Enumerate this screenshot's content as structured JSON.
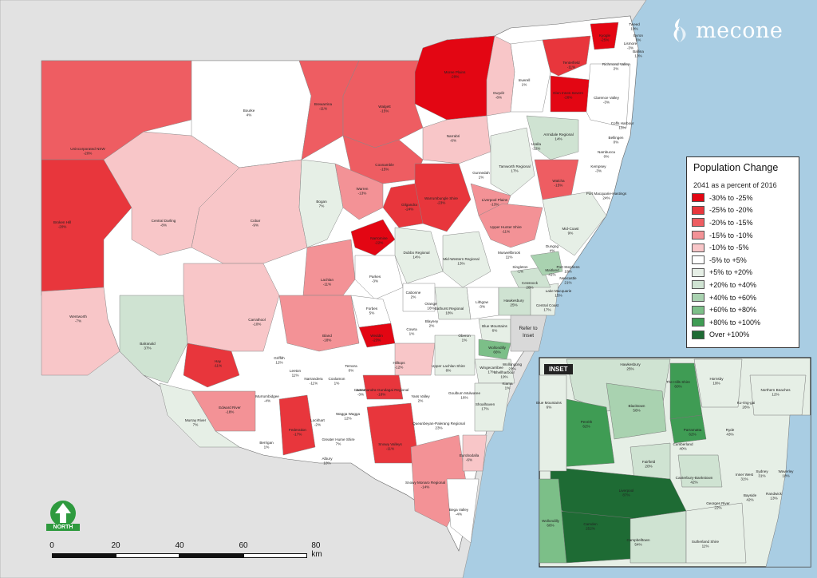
{
  "brand": {
    "name": "mecone"
  },
  "legend": {
    "title": "Population Change",
    "subtitle": "2041 as a percent of 2016",
    "items": [
      {
        "label": "-30% to -25%",
        "color": "#e30613"
      },
      {
        "label": "-25% to -20%",
        "color": "#e8363c"
      },
      {
        "label": "-20% to -15%",
        "color": "#ee5d62"
      },
      {
        "label": "-15% to -10%",
        "color": "#f39296"
      },
      {
        "label": "-10% to -5%",
        "color": "#f8c6c8"
      },
      {
        "label": "-5% to +5%",
        "color": "#ffffff"
      },
      {
        "label": "+5% to +20%",
        "color": "#e6efe6"
      },
      {
        "label": "+20% to +40%",
        "color": "#cfe3d2"
      },
      {
        "label": "+40% to +60%",
        "color": "#a9d2b0"
      },
      {
        "label": "+60% to +80%",
        "color": "#7cbf88"
      },
      {
        "label": "+80% to +100%",
        "color": "#3f9c54"
      },
      {
        "label": "Over +100%",
        "color": "#1e6b34"
      }
    ]
  },
  "inset": {
    "tag": "INSET"
  },
  "refer": {
    "line1": "Refer to",
    "line2": "Inset"
  },
  "north": {
    "label": "NORTH"
  },
  "scale": {
    "ticks": [
      "0",
      "20",
      "40",
      "60",
      "80 km"
    ]
  },
  "regions": [
    {
      "name": "Unincorporated NSW",
      "value": "-20%"
    },
    {
      "name": "Broken Hill",
      "value": "-20%"
    },
    {
      "name": "Bourke",
      "value": "4%"
    },
    {
      "name": "Brewarrina",
      "value": "-11%"
    },
    {
      "name": "Walgett",
      "value": "-15%"
    },
    {
      "name": "Moree Plains",
      "value": "-29%"
    },
    {
      "name": "Gwydir",
      "value": "-8%"
    },
    {
      "name": "Inverell",
      "value": "1%"
    },
    {
      "name": "Tenterfield",
      "value": "-11%"
    },
    {
      "name": "Kyogle",
      "value": "-25%"
    },
    {
      "name": "Glen Innes Severn",
      "value": "-26%"
    },
    {
      "name": "Tweed",
      "value": "19%"
    },
    {
      "name": "Byron",
      "value": "5%"
    },
    {
      "name": "Lismore",
      "value": "-3%"
    },
    {
      "name": "Ballina",
      "value": "13%"
    },
    {
      "name": "Richmond Valley",
      "value": "2%"
    },
    {
      "name": "Clarence Valley",
      "value": "-3%"
    },
    {
      "name": "Coffs Harbour",
      "value": "15%"
    },
    {
      "name": "Bellingen",
      "value": "0%"
    },
    {
      "name": "Nambucca",
      "value": "0%"
    },
    {
      "name": "Kempsey",
      "value": "-3%"
    },
    {
      "name": "Armidale Regional",
      "value": "14%"
    },
    {
      "name": "Uralla",
      "value": "-12%"
    },
    {
      "name": "Walcha",
      "value": "-15%"
    },
    {
      "name": "Port Macquarie-Hastings",
      "value": "24%"
    },
    {
      "name": "Narrabri",
      "value": "-6%"
    },
    {
      "name": "Coonamble",
      "value": "-15%"
    },
    {
      "name": "Gunnedah",
      "value": "1%"
    },
    {
      "name": "Tamworth Regional",
      "value": "17%"
    },
    {
      "name": "Warrumbungle Shire",
      "value": "-23%"
    },
    {
      "name": "Liverpool Plains",
      "value": "-13%"
    },
    {
      "name": "Central Darling",
      "value": "-8%"
    },
    {
      "name": "Cobar",
      "value": "-9%"
    },
    {
      "name": "Bogan",
      "value": "7%"
    },
    {
      "name": "Warren",
      "value": "-13%"
    },
    {
      "name": "Gilgandra",
      "value": "-24%"
    },
    {
      "name": "Upper Hunter Shire",
      "value": "-11%"
    },
    {
      "name": "Mid-Coast",
      "value": "9%"
    },
    {
      "name": "Narromine",
      "value": "-22%"
    },
    {
      "name": "Dubbo Regional",
      "value": "14%"
    },
    {
      "name": "Mid-Western Regional",
      "value": "13%"
    },
    {
      "name": "Muswellbrook",
      "value": "11%"
    },
    {
      "name": "Dungog",
      "value": "4%"
    },
    {
      "name": "Singleton",
      "value": "-1%"
    },
    {
      "name": "Maitland",
      "value": "41%"
    },
    {
      "name": "Port Stephens",
      "value": "19%"
    },
    {
      "name": "Cessnock",
      "value": "28%"
    },
    {
      "name": "Newcastle",
      "value": "21%"
    },
    {
      "name": "Lake Macquarie",
      "value": "15%"
    },
    {
      "name": "Central Coast",
      "value": "17%"
    },
    {
      "name": "Hawkesbury",
      "value": "25%"
    },
    {
      "name": "Lachlan",
      "value": "-11%"
    },
    {
      "name": "Parkes",
      "value": "-3%"
    },
    {
      "name": "Forbes",
      "value": "5%"
    },
    {
      "name": "Cabonne",
      "value": "2%"
    },
    {
      "name": "Orange",
      "value": "16%"
    },
    {
      "name": "Bathurst Regional",
      "value": "18%"
    },
    {
      "name": "Lithgow",
      "value": "-3%"
    },
    {
      "name": "Blayney",
      "value": "2%"
    },
    {
      "name": "Blue Mountains",
      "value": "6%"
    },
    {
      "name": "Oberon",
      "value": "1%"
    },
    {
      "name": "Cowra",
      "value": "1%"
    },
    {
      "name": "Weddin",
      "value": "-23%"
    },
    {
      "name": "Bland",
      "value": "-18%"
    },
    {
      "name": "Hilltops",
      "value": "-12%"
    },
    {
      "name": "Upper Lachlan Shire",
      "value": "8%"
    },
    {
      "name": "Wingecarribee",
      "value": "17%"
    },
    {
      "name": "Wollondilly",
      "value": "66%"
    },
    {
      "name": "Wollongong",
      "value": "21%"
    },
    {
      "name": "Shellharbour",
      "value": "19%"
    },
    {
      "name": "Kiama",
      "value": "1%"
    },
    {
      "name": "Wentworth",
      "value": "-7%"
    },
    {
      "name": "Balranald",
      "value": "37%"
    },
    {
      "name": "Carrathool",
      "value": "-10%"
    },
    {
      "name": "Hay",
      "value": "-11%"
    },
    {
      "name": "Griffith",
      "value": "12%"
    },
    {
      "name": "Leeton",
      "value": "11%"
    },
    {
      "name": "Narrandera",
      "value": "-11%"
    },
    {
      "name": "Coolamon",
      "value": "1%"
    },
    {
      "name": "Temora",
      "value": "0%"
    },
    {
      "name": "Junee",
      "value": "-3%"
    },
    {
      "name": "Cootamundra-Gundagai Regional",
      "value": "-18%"
    },
    {
      "name": "Yass Valley",
      "value": "2%"
    },
    {
      "name": "Goulburn Mulwaree",
      "value": "16%"
    },
    {
      "name": "Shoalhaven",
      "value": "17%"
    },
    {
      "name": "Queanbeyan-Palerang Regional",
      "value": "23%"
    },
    {
      "name": "Edward River",
      "value": "-18%"
    },
    {
      "name": "Murrumbidgee",
      "value": "-4%"
    },
    {
      "name": "Murray River",
      "value": "7%"
    },
    {
      "name": "Lockhart",
      "value": "-2%"
    },
    {
      "name": "Wagga Wagga",
      "value": "12%"
    },
    {
      "name": "Federation",
      "value": "-17%"
    },
    {
      "name": "Berrigan",
      "value": "1%"
    },
    {
      "name": "Greater Hume Shire",
      "value": "7%"
    },
    {
      "name": "Albury",
      "value": "18%"
    },
    {
      "name": "Snowy Valleys",
      "value": "-11%"
    },
    {
      "name": "Snowy Monaro Regional",
      "value": "-14%"
    },
    {
      "name": "Eurobodalla",
      "value": "-6%"
    },
    {
      "name": "Bega Valley",
      "value": "-4%"
    },
    {
      "name": "Hawkesbury (inset)",
      "value": "25%"
    },
    {
      "name": "Hornsby",
      "value": "19%"
    },
    {
      "name": "The Hills Shire",
      "value": "60%"
    },
    {
      "name": "Northern Beaches",
      "value": "12%"
    },
    {
      "name": "Ku-ring-gai",
      "value": "26%"
    },
    {
      "name": "Blacktown",
      "value": "56%"
    },
    {
      "name": "Parramatta",
      "value": "62%"
    },
    {
      "name": "Blue Mountains (inset)",
      "value": "6%"
    },
    {
      "name": "Penrith",
      "value": "62%"
    },
    {
      "name": "Cumberland",
      "value": "40%"
    },
    {
      "name": "Ryde",
      "value": "43%"
    },
    {
      "name": "Fairfield",
      "value": "20%"
    },
    {
      "name": "Canterbury-Bankstown",
      "value": "42%"
    },
    {
      "name": "Liverpool",
      "value": "87%"
    },
    {
      "name": "Inner West",
      "value": "31%"
    },
    {
      "name": "Sydney",
      "value": "31%"
    },
    {
      "name": "Waverley",
      "value": "18%"
    },
    {
      "name": "Randwick",
      "value": "13%"
    },
    {
      "name": "Bayside",
      "value": "42%"
    },
    {
      "name": "Georges River",
      "value": "22%"
    },
    {
      "name": "Camden",
      "value": "252%"
    },
    {
      "name": "Campbelltown",
      "value": "54%"
    },
    {
      "name": "Wollondilly (inset)",
      "value": "66%"
    },
    {
      "name": "Sutherland Shire",
      "value": "11%"
    }
  ]
}
